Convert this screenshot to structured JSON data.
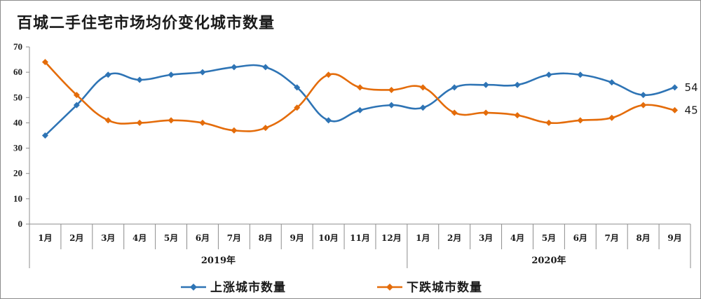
{
  "chart_data": {
    "type": "line",
    "title": "百城二手住宅市场均价变化城市数量",
    "ylim": [
      0,
      70
    ],
    "yticks": [
      "0",
      "10",
      "20",
      "30",
      "40",
      "50",
      "60",
      "70"
    ],
    "categories": [
      "1月",
      "2月",
      "3月",
      "4月",
      "5月",
      "6月",
      "7月",
      "8月",
      "9月",
      "10月",
      "11月",
      "12月",
      "1月",
      "2月",
      "3月",
      "4月",
      "5月",
      "6月",
      "7月",
      "8月",
      "9月"
    ],
    "year_groups": [
      {
        "label": "2019年",
        "count": 12
      },
      {
        "label": "2020年",
        "count": 9
      }
    ],
    "series": [
      {
        "name": "上涨城市数量",
        "color": "#2e74b5",
        "values": [
          35,
          47,
          59,
          57,
          59,
          60,
          62,
          62,
          54,
          41,
          45,
          47,
          46,
          54,
          55,
          55,
          59,
          59,
          56,
          51,
          54
        ],
        "end_label": "54"
      },
      {
        "name": "下跌城市数量",
        "color": "#e46c0a",
        "values": [
          64,
          51,
          41,
          40,
          41,
          40,
          37,
          38,
          46,
          59,
          54,
          53,
          54,
          44,
          44,
          43,
          40,
          41,
          42,
          47,
          45
        ],
        "end_label": "45"
      }
    ],
    "grid": false,
    "legend_position": "bottom"
  }
}
